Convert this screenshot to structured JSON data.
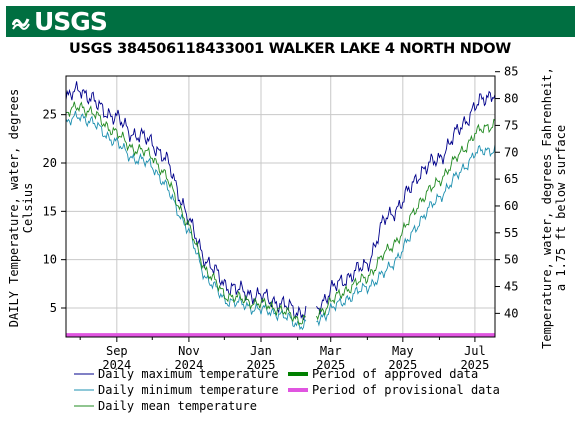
{
  "banner": {
    "logo_text": "USGS",
    "color": "#006f41"
  },
  "chart_data": {
    "type": "line",
    "title": "USGS 384506118433001 WALKER LAKE 4 NORTH NDOW",
    "ylabel_left": [
      "DAILY Temperature, water, degrees",
      "Celsius"
    ],
    "ylabel_right": [
      "Temperature, water, degrees Fahrenheit,",
      "a 1.75 ft below surface"
    ],
    "x_tick_labels": [
      [
        "Sep",
        "2024"
      ],
      [
        "Nov",
        "2024"
      ],
      [
        "Jan",
        "2025"
      ],
      [
        "Mar",
        "2025"
      ],
      [
        "May",
        "2025"
      ],
      [
        "Jul",
        "2025"
      ]
    ],
    "xlim": [
      "2024-07-20",
      "2025-07-18"
    ],
    "ylim_left": [
      2,
      29
    ],
    "ylim_right_ticks": [
      40,
      45,
      50,
      55,
      60,
      65,
      70,
      75,
      80,
      85
    ],
    "y_ticks_left": [
      5,
      10,
      15,
      20,
      25
    ],
    "grid": true,
    "dates": [
      "2024-07-20",
      "2024-08-01",
      "2024-08-15",
      "2024-09-01",
      "2024-09-15",
      "2024-10-01",
      "2024-10-15",
      "2024-11-01",
      "2024-11-15",
      "2024-12-01",
      "2024-12-15",
      "2025-01-01",
      "2025-01-15",
      "2025-02-01",
      "2025-02-15",
      "2025-03-01",
      "2025-03-15",
      "2025-04-01",
      "2025-04-15",
      "2025-05-01",
      "2025-05-15",
      "2025-06-01",
      "2025-06-15",
      "2025-07-01",
      "2025-07-18"
    ],
    "series": [
      {
        "name": "Daily maximum temperature",
        "color": "#00008b",
        "values": [
          26.5,
          27.8,
          26.0,
          24.6,
          23.0,
          22.2,
          19.8,
          14.0,
          10.0,
          7.5,
          6.7,
          6.2,
          5.6,
          4.6,
          4.6,
          6.8,
          8.2,
          9.5,
          14.0,
          16.0,
          19.0,
          20.5,
          23.0,
          25.8,
          27.5
        ]
      },
      {
        "name": "Daily minimum temperature",
        "color": "#1e90b0",
        "values": [
          24.0,
          25.0,
          23.8,
          22.0,
          20.5,
          19.8,
          17.0,
          12.8,
          8.2,
          5.9,
          5.4,
          4.8,
          4.5,
          3.3,
          3.5,
          4.8,
          6.0,
          7.2,
          8.5,
          11.0,
          14.0,
          16.5,
          18.5,
          21.0,
          21.5
        ]
      },
      {
        "name": "Daily mean temperature",
        "color": "#228b22",
        "values": [
          25.0,
          26.0,
          24.8,
          23.0,
          21.5,
          20.8,
          18.0,
          13.3,
          9.0,
          6.4,
          5.9,
          5.4,
          5.0,
          3.8,
          4.0,
          5.6,
          7.0,
          8.2,
          10.5,
          12.8,
          16.0,
          18.2,
          20.4,
          23.0,
          24.2
        ]
      }
    ],
    "legend": [
      {
        "label": "Daily maximum temperature",
        "color": "#00008b",
        "kind": "thin"
      },
      {
        "label": "Daily minimum temperature",
        "color": "#1e90b0",
        "kind": "thin"
      },
      {
        "label": "Daily mean temperature",
        "color": "#228b22",
        "kind": "thin"
      },
      {
        "label": "Period of approved data",
        "color": "#008000",
        "kind": "thick"
      },
      {
        "label": "Period of provisional data",
        "color": "#e055e0",
        "kind": "thick"
      }
    ],
    "legend_placement": "bottom",
    "provisional_bar": {
      "start": "2024-07-20",
      "end": "2025-07-18",
      "y": 2.2,
      "color": "#e055e0"
    }
  }
}
